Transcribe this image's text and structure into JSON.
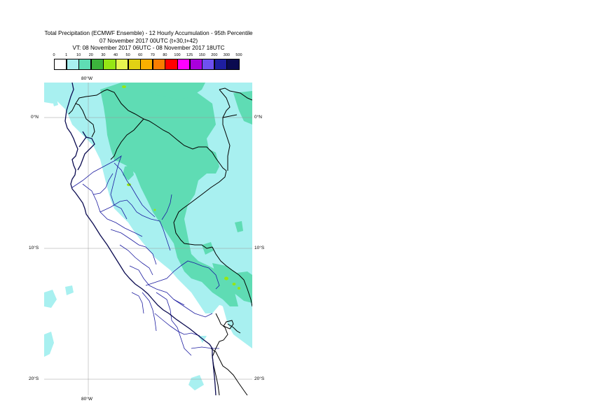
{
  "header": {
    "line1": "Total Precipitation (ECMWF Ensemble) - 12 Hourly Accumulation - 95th Percentile",
    "line2": "07 November 2017 00UTC (t+30,t+42)",
    "line3": "VT: 08 November 2017 06UTC - 08 November 2017 18UTC"
  },
  "legend": {
    "thresholds": [
      "0",
      "1",
      "10",
      "20",
      "30",
      "40",
      "50",
      "60",
      "70",
      "80",
      "100",
      "125",
      "150",
      "200",
      "300",
      "500"
    ],
    "colors": [
      "#ffffff",
      "#a8f0f0",
      "#5fdcb4",
      "#3cb43c",
      "#96e614",
      "#e6f550",
      "#e1d214",
      "#faaf00",
      "#fa7d00",
      "#ff0000",
      "#ff00ff",
      "#aa00dc",
      "#6e50f0",
      "#1e1ea0",
      "#0a0a50"
    ]
  },
  "map": {
    "lon_label_top": "80°W",
    "lon_label_bottom": "80°W",
    "lat_labels": [
      {
        "left": "0°N",
        "right": "0°N"
      },
      {
        "left": "10°S",
        "right": "10°S"
      },
      {
        "left": "20°S",
        "right": "20°S"
      }
    ],
    "colors": {
      "light_rain": "#a8f0f0",
      "moderate_rain": "#5fdcb4",
      "heavy_spot": "#96e614",
      "country_border": "#000000",
      "region_border": "#1c1ca0",
      "coastline": "#0a0a50",
      "gridline": "#999999"
    }
  }
}
